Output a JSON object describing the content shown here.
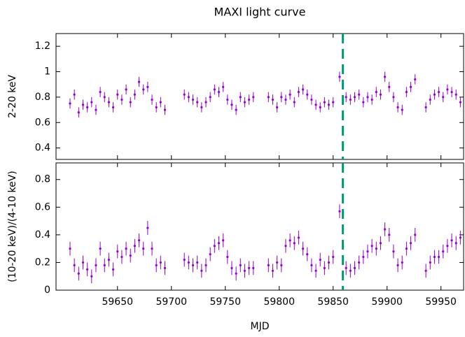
{
  "title": "MAXI light curve",
  "chart_data": [
    {
      "type": "errorbar",
      "ylabel": "2-20 keV",
      "color": "#9400d3",
      "x": [
        59606,
        59610,
        59614,
        59618,
        59622,
        59626,
        59630,
        59634,
        59638,
        59642,
        59646,
        59650,
        59654,
        59658,
        59662,
        59666,
        59670,
        59674,
        59678,
        59682,
        59686,
        59690,
        59694,
        59712,
        59716,
        59720,
        59724,
        59728,
        59732,
        59736,
        59740,
        59744,
        59748,
        59752,
        59756,
        59760,
        59764,
        59768,
        59772,
        59776,
        59790,
        59794,
        59798,
        59802,
        59806,
        59810,
        59814,
        59818,
        59822,
        59826,
        59830,
        59834,
        59838,
        59842,
        59846,
        59850,
        59856,
        59862,
        59866,
        59870,
        59874,
        59878,
        59882,
        59886,
        59890,
        59894,
        59898,
        59902,
        59906,
        59910,
        59914,
        59918,
        59922,
        59926,
        59936,
        59940,
        59944,
        59948,
        59952,
        59956,
        59960,
        59964,
        59968
      ],
      "values": [
        0.75,
        0.82,
        0.68,
        0.74,
        0.72,
        0.76,
        0.7,
        0.84,
        0.8,
        0.76,
        0.72,
        0.82,
        0.78,
        0.86,
        0.76,
        0.82,
        0.92,
        0.86,
        0.88,
        0.78,
        0.72,
        0.76,
        0.7,
        0.82,
        0.8,
        0.78,
        0.76,
        0.72,
        0.76,
        0.8,
        0.86,
        0.84,
        0.88,
        0.78,
        0.74,
        0.7,
        0.8,
        0.76,
        0.78,
        0.8,
        0.8,
        0.78,
        0.72,
        0.8,
        0.78,
        0.82,
        0.76,
        0.84,
        0.86,
        0.82,
        0.78,
        0.74,
        0.72,
        0.76,
        0.74,
        0.76,
        0.96,
        0.8,
        0.78,
        0.8,
        0.82,
        0.76,
        0.8,
        0.78,
        0.84,
        0.82,
        0.96,
        0.88,
        0.8,
        0.72,
        0.7,
        0.84,
        0.88,
        0.94,
        0.72,
        0.78,
        0.82,
        0.84,
        0.8,
        0.86,
        0.84,
        0.82,
        0.76
      ],
      "error": 0.04,
      "xlim": [
        59593,
        59971
      ],
      "xticks": [
        59650,
        59700,
        59750,
        59800,
        59850,
        59900,
        59950
      ],
      "ylim": [
        0.31,
        1.3
      ],
      "yticks": [
        0.4,
        0.6,
        0.8,
        1,
        1.2
      ],
      "vline": 59859,
      "vline_color": "#009e73"
    },
    {
      "type": "errorbar",
      "ylabel": "(10-20 keV)/(4-10 keV)",
      "xlabel": "MJD",
      "color": "#9400d3",
      "x": [
        59606,
        59610,
        59614,
        59618,
        59622,
        59626,
        59630,
        59634,
        59638,
        59642,
        59646,
        59650,
        59654,
        59658,
        59662,
        59666,
        59670,
        59674,
        59678,
        59682,
        59686,
        59690,
        59694,
        59712,
        59716,
        59720,
        59724,
        59728,
        59732,
        59736,
        59740,
        59744,
        59748,
        59752,
        59756,
        59760,
        59764,
        59768,
        59772,
        59776,
        59790,
        59794,
        59798,
        59802,
        59806,
        59810,
        59814,
        59818,
        59822,
        59826,
        59830,
        59834,
        59838,
        59842,
        59846,
        59850,
        59856,
        59862,
        59866,
        59870,
        59874,
        59878,
        59882,
        59886,
        59890,
        59894,
        59898,
        59902,
        59906,
        59910,
        59914,
        59918,
        59922,
        59926,
        59936,
        59940,
        59944,
        59948,
        59952,
        59956,
        59960,
        59964,
        59968
      ],
      "values": [
        0.3,
        0.18,
        0.12,
        0.2,
        0.15,
        0.1,
        0.18,
        0.3,
        0.18,
        0.22,
        0.15,
        0.28,
        0.24,
        0.3,
        0.25,
        0.32,
        0.36,
        0.3,
        0.45,
        0.3,
        0.18,
        0.2,
        0.16,
        0.22,
        0.2,
        0.18,
        0.2,
        0.14,
        0.18,
        0.26,
        0.32,
        0.34,
        0.36,
        0.24,
        0.16,
        0.12,
        0.18,
        0.14,
        0.16,
        0.16,
        0.18,
        0.14,
        0.2,
        0.18,
        0.32,
        0.36,
        0.34,
        0.38,
        0.3,
        0.26,
        0.18,
        0.14,
        0.22,
        0.16,
        0.2,
        0.24,
        0.57,
        0.16,
        0.14,
        0.16,
        0.2,
        0.24,
        0.28,
        0.32,
        0.3,
        0.34,
        0.44,
        0.4,
        0.28,
        0.18,
        0.2,
        0.3,
        0.34,
        0.4,
        0.14,
        0.2,
        0.24,
        0.24,
        0.28,
        0.32,
        0.36,
        0.34,
        0.38
      ],
      "error": 0.05,
      "xlim": [
        59593,
        59971
      ],
      "xticks": [
        59650,
        59700,
        59750,
        59800,
        59850,
        59900,
        59950
      ],
      "ylim": [
        0,
        0.92
      ],
      "yticks": [
        0,
        0.2,
        0.4,
        0.6,
        0.8
      ],
      "vline": 59859,
      "vline_color": "#009e73"
    }
  ]
}
